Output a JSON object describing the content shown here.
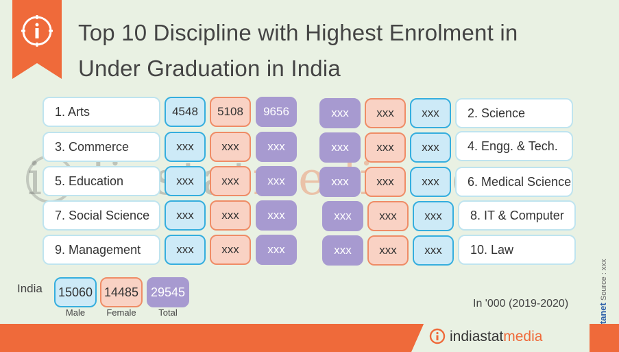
{
  "header": {
    "title_line1": "Top 10 Discipline with Highest Enrolment in",
    "title_line2": "Under Graduation in India",
    "icon": "info-icon"
  },
  "left_rows": [
    {
      "label": "1. Arts",
      "male": "4548",
      "female": "5108",
      "total": "9656"
    },
    {
      "label": "3. Commerce",
      "male": "xxx",
      "female": "xxx",
      "total": "xxx"
    },
    {
      "label": "5. Education",
      "male": "xxx",
      "female": "xxx",
      "total": "xxx"
    },
    {
      "label": "7. Social Science",
      "male": "xxx",
      "female": "xxx",
      "total": "xxx"
    },
    {
      "label": "9. Management",
      "male": "xxx",
      "female": "xxx",
      "total": "xxx"
    }
  ],
  "right_rows": [
    {
      "label": "2. Science",
      "total": "xxx",
      "female": "xxx",
      "male": "xxx"
    },
    {
      "label": "4. Engg. & Tech.",
      "total": "xxx",
      "female": "xxx",
      "male": "xxx"
    },
    {
      "label": "6. Medical Science",
      "total": "xxx",
      "female": "xxx",
      "male": "xxx"
    },
    {
      "label": "8. IT & Computer",
      "total": "xxx",
      "female": "xxx",
      "male": "xxx"
    },
    {
      "label": "10. Law",
      "total": "xxx",
      "female": "xxx",
      "male": "xxx"
    }
  ],
  "india": {
    "label": "India",
    "male": "15060",
    "female": "14485",
    "total": "29545",
    "male_label": "Male",
    "female_label": "Female",
    "total_label": "Total"
  },
  "unit": "In '000 (2019-2020)",
  "source": {
    "brand": "Datanet",
    "text": "Source : xxx",
    "copyright": "©"
  },
  "watermark": {
    "part1": "indiastat",
    "part2": "media",
    "part3": ".com"
  },
  "footer": {
    "brand_part1": "indiastat",
    "brand_part2": "media"
  },
  "colors": {
    "accent": "#ef6a3a",
    "male": "#35aede",
    "female": "#ef8c66",
    "total": "#a79ad0",
    "background": "#e9f1e3"
  }
}
